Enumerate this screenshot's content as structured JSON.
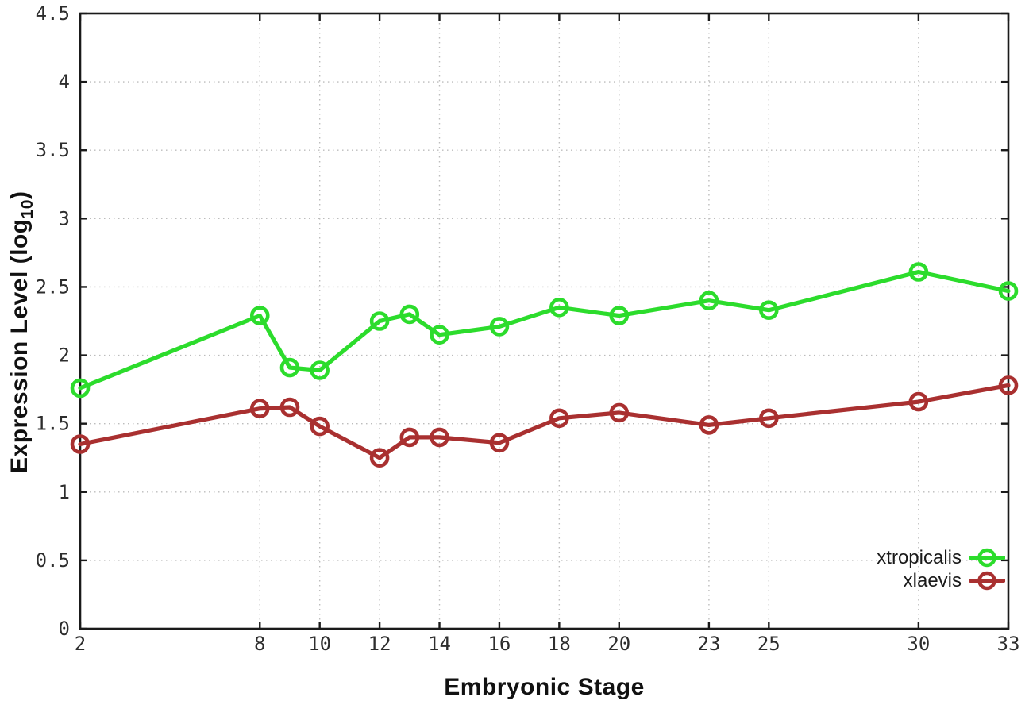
{
  "chart_data": {
    "type": "line",
    "title": "",
    "xlabel": "Embryonic Stage",
    "ylabel": "Expression Level (log10)",
    "ylabel_parts": {
      "prefix": "Expression Level (log",
      "subscript": "10",
      "suffix": ")"
    },
    "x_axis": {
      "tick_values": [
        2,
        8,
        10,
        12,
        14,
        16,
        18,
        20,
        23,
        25,
        30,
        33
      ],
      "tick_labels": [
        "2",
        "8",
        "10",
        "12",
        "14",
        "16",
        "18",
        "20",
        "23",
        "25",
        "30",
        "33"
      ],
      "xlim": [
        2,
        33
      ]
    },
    "y_axis": {
      "tick_values": [
        0,
        0.5,
        1,
        1.5,
        2,
        2.5,
        3,
        3.5,
        4,
        4.5
      ],
      "tick_labels": [
        "0",
        "0.5",
        "1",
        "1.5",
        "2",
        "2.5",
        "3",
        "3.5",
        "4",
        "4.5"
      ],
      "ylim": [
        0,
        4.5
      ]
    },
    "grid": true,
    "legend": {
      "position": "bottom-right",
      "entries": [
        "xtropicalis",
        "xlaevis"
      ]
    },
    "x": [
      2,
      8,
      9,
      10,
      12,
      13,
      14,
      16,
      18,
      20,
      23,
      25,
      30,
      33
    ],
    "series": [
      {
        "name": "xtropicalis",
        "color": "#2CDC2C",
        "values": [
          1.76,
          2.29,
          1.91,
          1.89,
          2.25,
          2.3,
          2.15,
          2.21,
          2.35,
          2.29,
          2.4,
          2.33,
          2.61,
          2.47
        ]
      },
      {
        "name": "xlaevis",
        "color": "#A93030",
        "values": [
          1.35,
          1.61,
          1.62,
          1.48,
          1.25,
          1.4,
          1.4,
          1.36,
          1.54,
          1.58,
          1.49,
          1.54,
          1.66,
          1.78
        ]
      }
    ]
  },
  "colors": {
    "background": "#ffffff",
    "axis": "#1a1a1a",
    "grid": "#bcbcbc",
    "tick_text": "#2d2d2d"
  }
}
